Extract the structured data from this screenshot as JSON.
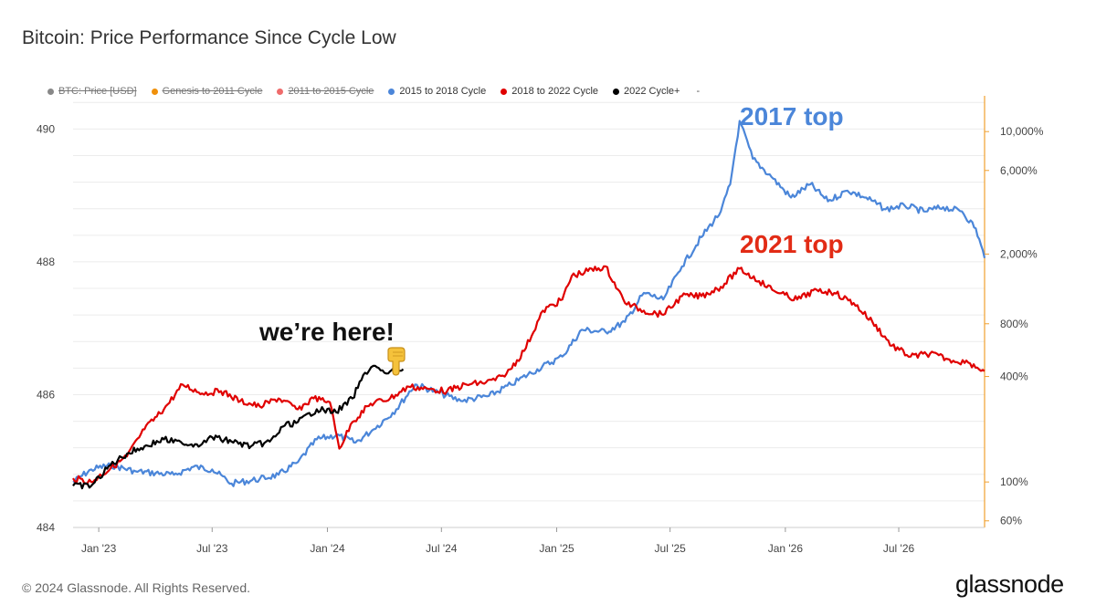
{
  "title": "Bitcoin: Price Performance Since Cycle Low",
  "legend": [
    {
      "label": "BTC: Price [USD]",
      "color": "#888888",
      "active": false
    },
    {
      "label": "Genesis to 2011 Cycle",
      "color": "#f0900a",
      "active": false
    },
    {
      "label": "2011 to 2015 Cycle",
      "color": "#ef6b6b",
      "active": false
    },
    {
      "label": "2015 to 2018 Cycle",
      "color": "#4b86d9",
      "active": true
    },
    {
      "label": "2018 to 2022 Cycle",
      "color": "#e00000",
      "active": true
    },
    {
      "label": "2022 Cycle+",
      "color": "#000000",
      "active": true
    }
  ],
  "legend_trailing": "-",
  "annotations": {
    "top_2017": "2017 top",
    "top_2021": "2021 top",
    "here": "we’re here!"
  },
  "footer": "© 2024 Glassnode. All Rights Reserved.",
  "brand": "glassnode",
  "chart_data": {
    "type": "line",
    "x_ticks": [
      "Jan '23",
      "Jul '23",
      "Jan '24",
      "Jul '24",
      "Jan '25",
      "Jul '25",
      "Jan '26",
      "Jul '26"
    ],
    "x_tick_dates": [
      "2023-01-01",
      "2023-07-01",
      "2024-01-01",
      "2024-07-01",
      "2025-01-01",
      "2025-07-01",
      "2026-01-01",
      "2026-07-01"
    ],
    "xlim": [
      "2022-11-21",
      "2026-11-15"
    ],
    "y_left_ticks": [
      "484",
      "486",
      "488",
      "490"
    ],
    "y_left_lim": [
      484,
      490.5
    ],
    "y_right_scale": "log",
    "y_right_ticks": [
      "60%",
      "100%",
      "400%",
      "800%",
      "2,000%",
      "6,000%",
      "10,000%"
    ],
    "y_right_values": [
      60,
      100,
      400,
      800,
      2000,
      6000,
      10000
    ],
    "y_right_lim": [
      55,
      16000
    ],
    "grid": true,
    "series": [
      {
        "name": "2015 to 2018 Cycle",
        "color": "#4b86d9",
        "x": [
          "2022-11-21",
          "2022-12-20",
          "2023-01-20",
          "2023-03-01",
          "2023-05-01",
          "2023-06-01",
          "2023-07-01",
          "2023-08-01",
          "2023-09-15",
          "2023-10-15",
          "2023-11-15",
          "2023-12-15",
          "2024-01-15",
          "2024-02-15",
          "2024-03-15",
          "2024-04-20",
          "2024-05-20",
          "2024-06-20",
          "2024-08-01",
          "2024-09-15",
          "2024-10-20",
          "2024-12-01",
          "2025-01-10",
          "2025-02-10",
          "2025-03-20",
          "2025-04-20",
          "2025-05-20",
          "2025-06-20",
          "2025-07-20",
          "2025-08-20",
          "2025-09-20",
          "2025-10-05",
          "2025-10-20",
          "2025-11-10",
          "2025-12-10",
          "2026-01-10",
          "2026-02-10",
          "2026-03-10",
          "2026-04-10",
          "2026-05-10",
          "2026-06-10",
          "2026-07-10",
          "2026-08-10",
          "2026-09-10",
          "2026-10-10",
          "2026-11-01",
          "2026-11-15"
        ],
        "y": [
          100,
          118,
          125,
          115,
          110,
          122,
          118,
          98,
          104,
          110,
          130,
          175,
          185,
          168,
          200,
          260,
          360,
          330,
          290,
          310,
          360,
          440,
          520,
          740,
          720,
          820,
          1200,
          1100,
          1700,
          2500,
          3500,
          5000,
          11500,
          7000,
          5500,
          4200,
          5000,
          4000,
          4600,
          4200,
          3600,
          3800,
          3500,
          3700,
          3500,
          2800,
          1900
        ]
      },
      {
        "name": "2018 to 2022 Cycle",
        "color": "#e00000",
        "x": [
          "2022-11-21",
          "2022-12-20",
          "2023-01-20",
          "2023-02-15",
          "2023-03-15",
          "2023-04-15",
          "2023-05-15",
          "2023-06-15",
          "2023-07-15",
          "2023-08-15",
          "2023-09-15",
          "2023-10-15",
          "2023-11-15",
          "2023-12-10",
          "2024-01-05",
          "2024-01-20",
          "2024-02-10",
          "2024-03-10",
          "2024-04-10",
          "2024-05-10",
          "2024-06-10",
          "2024-07-10",
          "2024-08-10",
          "2024-09-10",
          "2024-10-10",
          "2024-11-10",
          "2024-12-10",
          "2025-01-10",
          "2025-01-25",
          "2025-02-20",
          "2025-03-20",
          "2025-04-20",
          "2025-05-20",
          "2025-06-20",
          "2025-07-20",
          "2025-08-20",
          "2025-09-20",
          "2025-10-20",
          "2025-11-20",
          "2025-12-20",
          "2026-01-20",
          "2026-02-20",
          "2026-03-20",
          "2026-04-20",
          "2026-05-20",
          "2026-06-20",
          "2026-07-20",
          "2026-08-20",
          "2026-09-20",
          "2026-10-20",
          "2026-11-15"
        ],
        "y": [
          105,
          100,
          120,
          140,
          200,
          260,
          360,
          320,
          330,
          290,
          270,
          300,
          260,
          300,
          285,
          155,
          220,
          280,
          300,
          350,
          340,
          330,
          360,
          370,
          400,
          560,
          950,
          1100,
          1500,
          1600,
          1700,
          1050,
          950,
          900,
          1150,
          1150,
          1300,
          1650,
          1400,
          1200,
          1100,
          1250,
          1200,
          1050,
          820,
          600,
          520,
          540,
          500,
          480,
          430
        ]
      },
      {
        "name": "2022 Cycle+",
        "color": "#000000",
        "x": [
          "2022-11-21",
          "2022-12-20",
          "2023-01-20",
          "2023-02-15",
          "2023-03-15",
          "2023-04-15",
          "2023-05-15",
          "2023-06-15",
          "2023-07-01",
          "2023-08-01",
          "2023-09-01",
          "2023-10-01",
          "2023-10-25",
          "2023-11-15",
          "2023-12-15",
          "2024-01-15",
          "2024-02-10",
          "2024-03-01",
          "2024-03-14",
          "2024-04-01",
          "2024-05-01"
        ],
        "y": [
          95,
          95,
          125,
          145,
          160,
          175,
          165,
          165,
          180,
          170,
          160,
          170,
          210,
          220,
          260,
          250,
          300,
          420,
          460,
          420,
          440
        ]
      }
    ]
  }
}
